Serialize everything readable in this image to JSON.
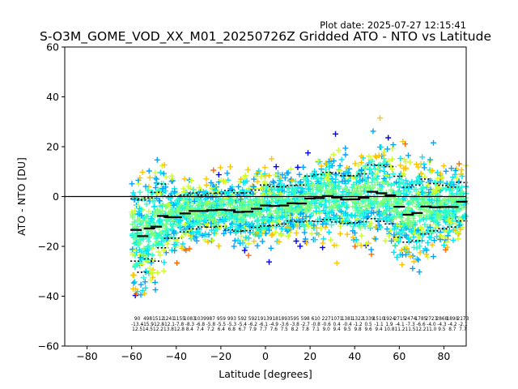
{
  "plot_date": "Plot date: 2025-07-27 12:15:41",
  "chart_data": {
    "type": "scatter",
    "title": "S-O3M_GOME_VOD_XX_M01_20250726Z Gridded ATO - NTO vs Latitude",
    "xlabel": "Latitude [degrees]",
    "ylabel": "ATO - NTO [DU]",
    "xlim": [
      -90,
      90
    ],
    "ylim": [
      -60,
      60
    ],
    "x_ticks": [
      -80,
      -60,
      -40,
      -20,
      0,
      20,
      40,
      60,
      80
    ],
    "y_ticks": [
      -60,
      -40,
      -20,
      0,
      20,
      40,
      60
    ],
    "x_tick_labels": [
      "−80",
      "−60",
      "−40",
      "−20",
      "0",
      "20",
      "40",
      "60",
      "80"
    ],
    "y_tick_labels": [
      "−60",
      "−40",
      "−20",
      "0",
      "20",
      "40",
      "60"
    ],
    "zero_line": 0,
    "grid": false,
    "legend": "none",
    "marker": "+",
    "colors": [
      "#0000ff",
      "#00a4ff",
      "#00e4f8",
      "#29ffce",
      "#7dff7a",
      "#ceff29",
      "#ffc400",
      "#ff6800"
    ],
    "mean_marks": [
      {
        "lat": -58,
        "mean": -13.4,
        "std": 12.5
      },
      {
        "lat": -55,
        "mean": -15.9,
        "std": 14.5
      },
      {
        "lat": -52,
        "mean": -12.8,
        "std": 12.2
      },
      {
        "lat": -49,
        "mean": -12.1,
        "std": 13.8
      },
      {
        "lat": -46,
        "mean": -7.8,
        "std": 12.8
      },
      {
        "lat": -43,
        "mean": -8.3,
        "std": 8.4
      },
      {
        "lat": -40,
        "mean": -8.3,
        "std": 8.4
      },
      {
        "lat": -36,
        "mean": -6.8,
        "std": 7.4
      },
      {
        "lat": -32,
        "mean": -5.8,
        "std": 7.2
      },
      {
        "lat": -28,
        "mean": -5.8,
        "std": 6.4
      },
      {
        "lat": -24,
        "mean": -5.5,
        "std": 6.8
      },
      {
        "lat": -20,
        "mean": -5.3,
        "std": 6.7
      },
      {
        "lat": -16,
        "mean": -5.5,
        "std": 7.9
      },
      {
        "lat": -12,
        "mean": -6.2,
        "std": 7.7
      },
      {
        "lat": -8,
        "mean": -6.1,
        "std": 7.6
      },
      {
        "lat": -4,
        "mean": -4.9,
        "std": 7.5
      },
      {
        "lat": 0,
        "mean": -3.6,
        "std": 8.2
      },
      {
        "lat": 4,
        "mean": -3.8,
        "std": 7.8
      },
      {
        "lat": 8,
        "mean": -3.6,
        "std": 7.5
      },
      {
        "lat": 12,
        "mean": -2.7,
        "std": 7.1
      },
      {
        "lat": 16,
        "mean": -2.8,
        "std": 7.4
      },
      {
        "lat": 20,
        "mean": -0.8,
        "std": 9.0
      },
      {
        "lat": 24,
        "mean": -0.6,
        "std": 9.4
      },
      {
        "lat": 28,
        "mean": 0.2,
        "std": 9.5
      },
      {
        "lat": 32,
        "mean": -0.4,
        "std": 9.8
      },
      {
        "lat": 36,
        "mean": -1.2,
        "std": 9.6
      },
      {
        "lat": 40,
        "mean": -1.1,
        "std": 9.4
      },
      {
        "lat": 44,
        "mean": -0.5,
        "std": 9.6
      },
      {
        "lat": 48,
        "mean": 1.9,
        "std": 10.8
      },
      {
        "lat": 52,
        "mean": 1.3,
        "std": 11.2
      },
      {
        "lat": 56,
        "mean": 0.5,
        "std": 11.5
      },
      {
        "lat": 60,
        "mean": -4.1,
        "std": 12.2
      },
      {
        "lat": 64,
        "mean": -7.3,
        "std": 11.0
      },
      {
        "lat": 68,
        "mean": -6.6,
        "std": 11.2
      },
      {
        "lat": 72,
        "mean": -4.0,
        "std": 11.0
      },
      {
        "lat": 76,
        "mean": -4.3,
        "std": 9.5
      },
      {
        "lat": 80,
        "mean": -4.2,
        "std": 8.7
      },
      {
        "lat": 84,
        "mean": -4.2,
        "std": 8.0
      },
      {
        "lat": 88,
        "mean": -2.1,
        "std": 7.7
      }
    ],
    "count_row": [
      "90",
      "498",
      "1512",
      "1241",
      "1155",
      "1083",
      "1039",
      "987",
      "959",
      "993",
      "592",
      "592",
      "1913",
      "918",
      "1893",
      "595",
      "598",
      "610",
      "227",
      "1071",
      "1381",
      "1322",
      "1339",
      "1510",
      "1924",
      "2715",
      "2474",
      "1785",
      "2723",
      "2868",
      "1890",
      "2173"
    ],
    "mean_row": [
      "-13.4",
      "-15.9",
      "-12.8",
      "-12.1",
      "-7.8",
      "-8.3",
      "-6.8",
      "-5.8",
      "-5.5",
      "-5.3",
      "-5.4",
      "-6.2",
      "-6.1",
      "-4.9",
      "-3.6",
      "-3.8",
      "-2.7",
      "-0.8",
      "-0.6",
      "0.4",
      "-0.4",
      "-1.2",
      "0.5",
      "-1.1",
      "1.9",
      "-4.1",
      "-7.3",
      "-6.6",
      "-4.0",
      "-4.3",
      "-4.2",
      "-2.1"
    ],
    "std_row": [
      "12.5",
      "14.5",
      "12.2",
      "13.8",
      "12.8",
      "8.4",
      "7.4",
      "7.2",
      "6.4",
      "6.8",
      "6.7",
      "7.9",
      "7.7",
      "7.6",
      "7.5",
      "8.2",
      "7.8",
      "7.1",
      "9.0",
      "9.4",
      "9.5",
      "9.8",
      "9.6",
      "9.4",
      "10.8",
      "11.2",
      "11.5",
      "12.2",
      "11.0",
      "9.5",
      "8.7",
      "7.7"
    ]
  }
}
